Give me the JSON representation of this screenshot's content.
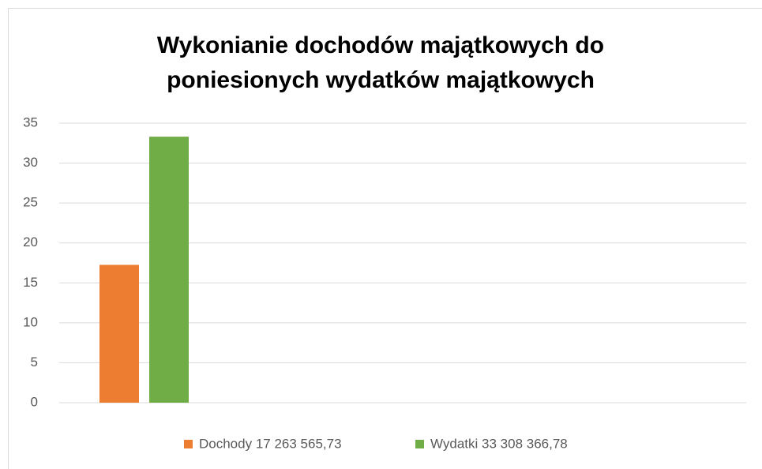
{
  "chart_data": {
    "type": "bar",
    "title": "Wykonianie dochodów majątkowych do poniesionych wydatków majątkowych",
    "categories": [
      null
    ],
    "series": [
      {
        "name": "Dochody 17 263 565,73",
        "color": "#ed7d31",
        "values": [
          17.26
        ]
      },
      {
        "name": "Wydatki 33 308 366,78",
        "color": "#70ad47",
        "values": [
          33.31
        ]
      }
    ],
    "ylim": [
      0,
      35
    ],
    "yticks": [
      0,
      5,
      10,
      15,
      20,
      25,
      30,
      35
    ],
    "grid": true,
    "legend": "bottom"
  }
}
